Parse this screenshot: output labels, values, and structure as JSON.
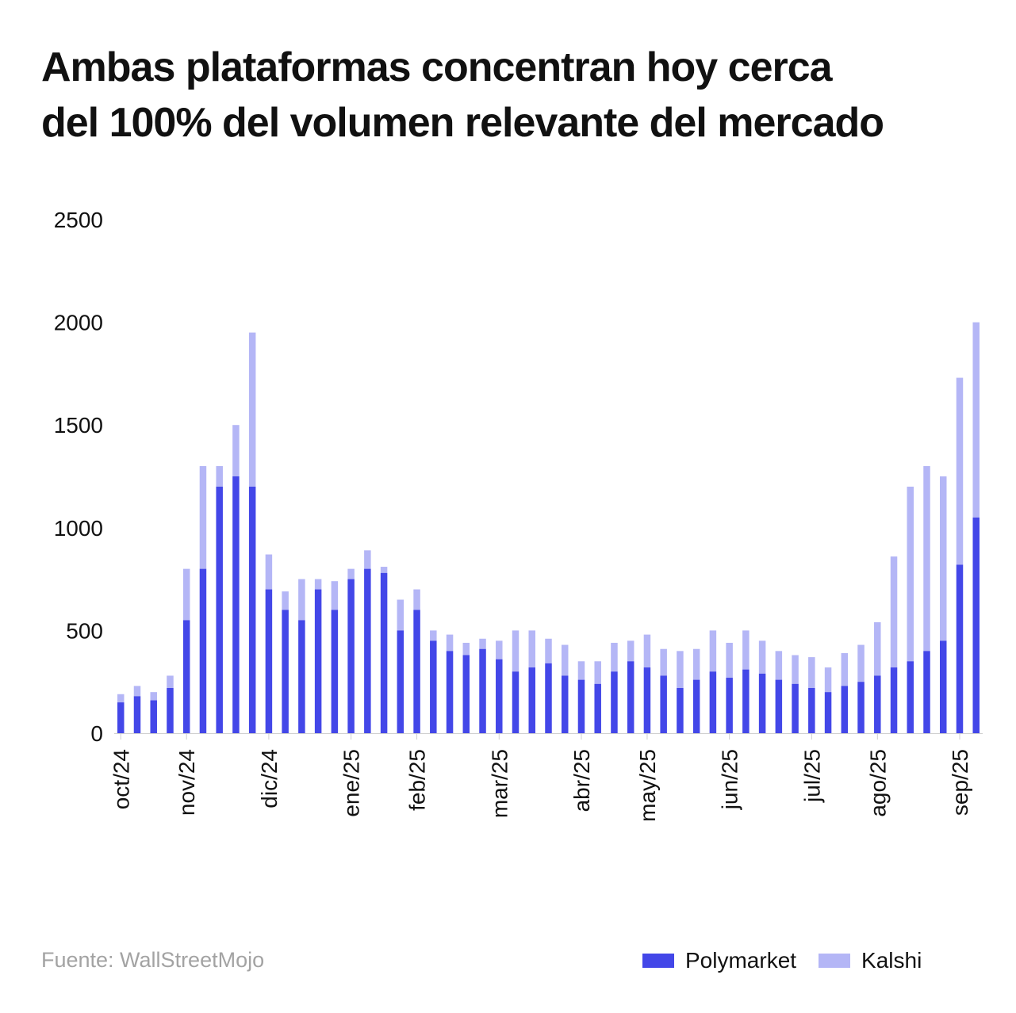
{
  "title_lines": [
    "Ambas plataformas concentran hoy cerca",
    "del 100% del volumen relevante del mercado"
  ],
  "source": "Fuente: WallStreetMojo",
  "colors": {
    "polymarket": "#4347e8",
    "kalshi": "#b4b6f6",
    "axis": "#cfcfcf",
    "text": "#111111",
    "source": "#a3a3a3"
  },
  "chart_data": {
    "type": "bar",
    "stacked": true,
    "title": "Ambas plataformas concentran hoy cerca del 100% del volumen relevante del mercado",
    "ylim": [
      0,
      2500
    ],
    "yticks": [
      0,
      500,
      1000,
      1500,
      2000,
      2500
    ],
    "grid": false,
    "legend_position": "bottom-right",
    "month_labels": [
      {
        "label": "oct/24",
        "index": 0
      },
      {
        "label": "nov/24",
        "index": 4
      },
      {
        "label": "dic/24",
        "index": 9
      },
      {
        "label": "ene/25",
        "index": 14
      },
      {
        "label": "feb/25",
        "index": 18
      },
      {
        "label": "mar/25",
        "index": 23
      },
      {
        "label": "abr/25",
        "index": 28
      },
      {
        "label": "may/25",
        "index": 32
      },
      {
        "label": "jun/25",
        "index": 37
      },
      {
        "label": "jul/25",
        "index": 42
      },
      {
        "label": "ago/25",
        "index": 46
      },
      {
        "label": "sep/25",
        "index": 51
      }
    ],
    "series": [
      {
        "name": "Polymarket",
        "color": "#4347e8",
        "values": [
          150,
          180,
          160,
          220,
          550,
          800,
          1200,
          1250,
          1200,
          700,
          600,
          550,
          700,
          600,
          750,
          800,
          780,
          500,
          600,
          450,
          400,
          380,
          410,
          360,
          300,
          320,
          340,
          280,
          260,
          240,
          300,
          350,
          320,
          280,
          220,
          260,
          300,
          270,
          310,
          290,
          260,
          240,
          220,
          200,
          230,
          250,
          280,
          320,
          350,
          400,
          450,
          820,
          1050
        ]
      },
      {
        "name": "Kalshi",
        "color": "#b4b6f6",
        "values": [
          40,
          50,
          40,
          60,
          250,
          500,
          100,
          250,
          750,
          170,
          90,
          200,
          50,
          140,
          50,
          90,
          30,
          150,
          100,
          50,
          80,
          60,
          50,
          90,
          200,
          180,
          120,
          150,
          90,
          110,
          140,
          100,
          160,
          130,
          180,
          150,
          200,
          170,
          190,
          160,
          140,
          140,
          150,
          120,
          160,
          180,
          260,
          540,
          850,
          900,
          800,
          910,
          950
        ]
      }
    ]
  }
}
